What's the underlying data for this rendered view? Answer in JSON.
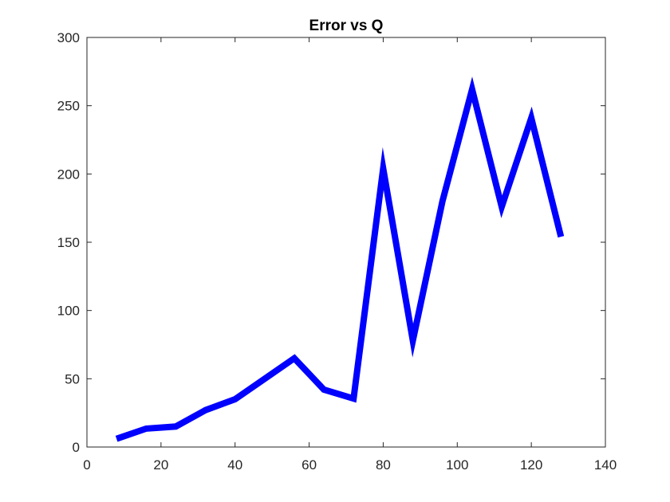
{
  "chart_data": {
    "type": "line",
    "title": "Error vs Q",
    "xlabel": "",
    "ylabel": "",
    "xlim": [
      0,
      140
    ],
    "ylim": [
      0,
      300
    ],
    "xticks": [
      0,
      20,
      40,
      60,
      80,
      100,
      120,
      140
    ],
    "yticks": [
      0,
      50,
      100,
      150,
      200,
      250,
      300
    ],
    "grid": false,
    "line_color": "#0000ff",
    "series": [
      {
        "x": [
          8,
          16,
          24,
          32,
          40,
          48,
          56,
          64,
          72,
          80,
          88,
          96,
          104,
          112,
          120,
          128
        ],
        "values": [
          6,
          13.5,
          15,
          27,
          35,
          50,
          65,
          42,
          35.5,
          204,
          78,
          180,
          262,
          176,
          241,
          154
        ]
      }
    ]
  }
}
